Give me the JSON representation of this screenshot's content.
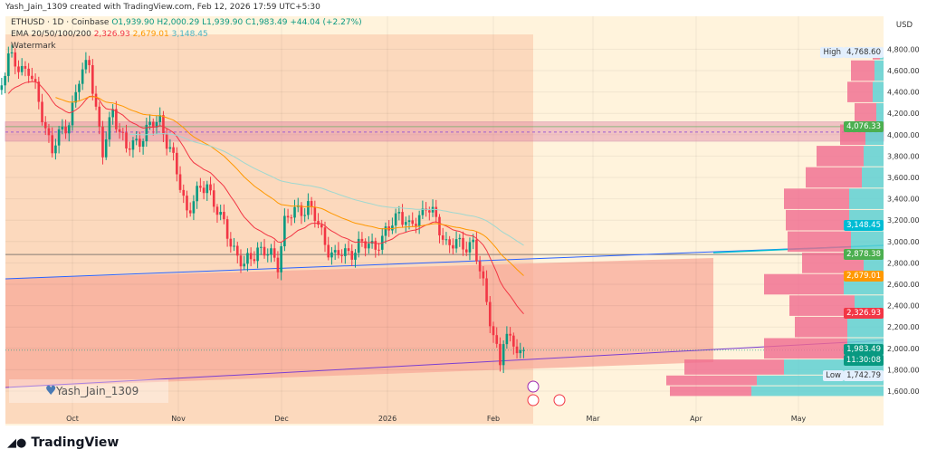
{
  "credit": "Yash_Jain_1309 created with TradingView.com, Feb 12, 2026 17:59 UTC+5:30",
  "legend": {
    "symbol": "ETHUSD · 1D · Coinbase",
    "o": "O1,939.90",
    "h": "H2,000.29",
    "l": "L1,939.90",
    "c": "C1,983.49",
    "change": "+44.04 (+2.27%)",
    "ema_label": "EMA 20/50/100/200",
    "ema20": "2,326.93",
    "ema50": "2,679.01",
    "ema100": "3,148.45",
    "watermark_label": "Watermark"
  },
  "watermark": "Yash_Jain_1309",
  "currency": "USD",
  "logo": "TradingView",
  "labels": {
    "high_tag": "High",
    "high": "4,768.60",
    "low_tag": "Low",
    "low": "1,742.79",
    "zone": "4,076.33",
    "line": "2,878.38",
    "ema50": "2,679.01",
    "ema20": "2,326.93",
    "ema100": "3,148.45",
    "last": "1,983.49",
    "countdown": "11:30:08"
  },
  "colors": {
    "up": "#089981",
    "down": "#f23645",
    "ema20": "#f23645",
    "ema50": "#ff9800",
    "ema100": "#9fd8d0"
  },
  "chart_data": {
    "type": "candlestick",
    "y_ticks": [
      1600,
      1800,
      2000,
      2200,
      2400,
      2600,
      2800,
      3000,
      3200,
      3400,
      3600,
      3800,
      4000,
      4200,
      4400,
      4600,
      4800
    ],
    "ylim": [
      1550,
      4900
    ],
    "x_ticks": [
      "Oct",
      "Nov",
      "Dec",
      "2026",
      "Feb",
      "Mar",
      "Apr",
      "May"
    ],
    "close_path": [
      [
        "2025-09-08",
        4300
      ],
      [
        "2025-09-12",
        4700
      ],
      [
        "2025-09-18",
        4600
      ],
      [
        "2025-09-22",
        4200
      ],
      [
        "2025-09-25",
        3850
      ],
      [
        "2025-09-30",
        4150
      ],
      [
        "2025-10-03",
        4500
      ],
      [
        "2025-10-06",
        4700
      ],
      [
        "2025-10-10",
        3800
      ],
      [
        "2025-10-13",
        4250
      ],
      [
        "2025-10-17",
        3850
      ],
      [
        "2025-10-27",
        4150
      ],
      [
        "2025-10-30",
        3850
      ],
      [
        "2025-11-04",
        3300
      ],
      [
        "2025-11-10",
        3550
      ],
      [
        "2025-11-14",
        3200
      ],
      [
        "2025-11-21",
        2750
      ],
      [
        "2025-11-25",
        2950
      ],
      [
        "2025-12-01",
        2800
      ],
      [
        "2025-12-03",
        3200
      ],
      [
        "2025-12-10",
        3350
      ],
      [
        "2025-12-15",
        3000
      ],
      [
        "2025-12-18",
        2850
      ],
      [
        "2025-12-25",
        2950
      ],
      [
        "2026-01-01",
        3000
      ],
      [
        "2026-01-06",
        3300
      ],
      [
        "2026-01-09",
        3100
      ],
      [
        "2026-01-14",
        3350
      ],
      [
        "2026-01-20",
        3000
      ],
      [
        "2026-01-24",
        2950
      ],
      [
        "2026-01-28",
        3000
      ],
      [
        "2026-01-30",
        2700
      ],
      [
        "2026-02-02",
        2300
      ],
      [
        "2026-02-05",
        1850
      ],
      [
        "2026-02-06",
        2050
      ],
      [
        "2026-02-09",
        2100
      ],
      [
        "2026-02-11",
        1940
      ],
      [
        "2026-02-12",
        1983
      ]
    ],
    "resistance_zone": [
      3940,
      4120
    ],
    "horizontal_line": 2878.38
  }
}
